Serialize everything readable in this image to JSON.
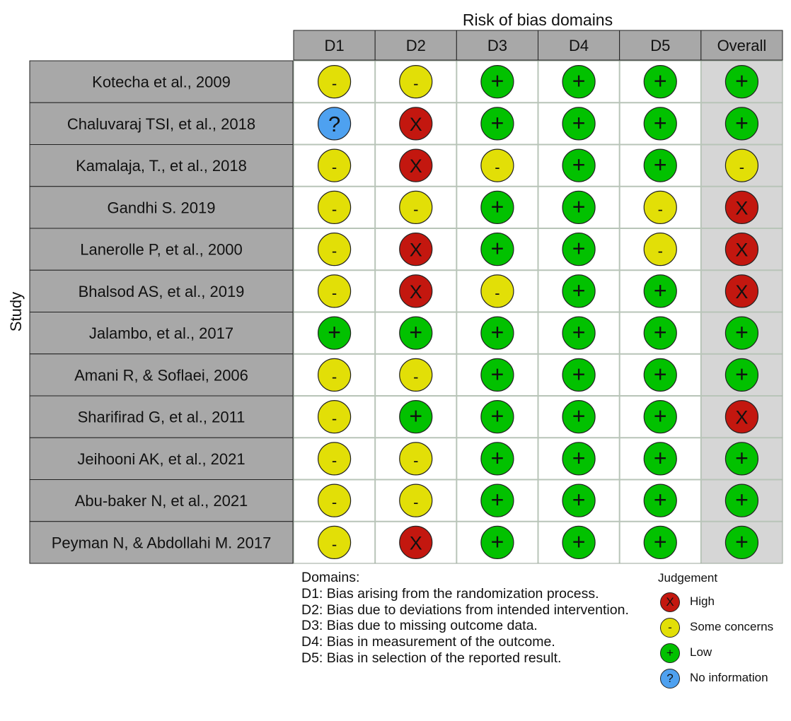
{
  "chart_data": {
    "type": "table",
    "title": "Risk of bias domains",
    "ylabel": "Study",
    "columns": [
      "D1",
      "D2",
      "D3",
      "D4",
      "D5",
      "Overall"
    ],
    "rows": [
      {
        "study": "Kotecha et al., 2009",
        "judgements": [
          "some",
          "some",
          "low",
          "low",
          "low",
          "low"
        ]
      },
      {
        "study": "Chaluvaraj TSI, et al., 2018",
        "judgements": [
          "noinfo",
          "high",
          "low",
          "low",
          "low",
          "low"
        ]
      },
      {
        "study": "Kamalaja, T., et al., 2018",
        "judgements": [
          "some",
          "high",
          "some",
          "low",
          "low",
          "some"
        ]
      },
      {
        "study": "Gandhi S. 2019",
        "judgements": [
          "some",
          "some",
          "low",
          "low",
          "some",
          "high"
        ]
      },
      {
        "study": "Lanerolle P, et al., 2000",
        "judgements": [
          "some",
          "high",
          "low",
          "low",
          "some",
          "high"
        ]
      },
      {
        "study": "Bhalsod AS, et al., 2019",
        "judgements": [
          "some",
          "high",
          "some",
          "low",
          "low",
          "high"
        ]
      },
      {
        "study": "Jalambo, et al., 2017",
        "judgements": [
          "low",
          "low",
          "low",
          "low",
          "low",
          "low"
        ]
      },
      {
        "study": "Amani R, & Soflaei, 2006",
        "judgements": [
          "some",
          "some",
          "low",
          "low",
          "low",
          "low"
        ]
      },
      {
        "study": "Sharifirad G, et al., 2011",
        "judgements": [
          "some",
          "low",
          "low",
          "low",
          "low",
          "high"
        ]
      },
      {
        "study": "Jeihooni AK, et al., 2021",
        "judgements": [
          "some",
          "some",
          "low",
          "low",
          "low",
          "low"
        ]
      },
      {
        "study": "Abu-baker N, et al., 2021",
        "judgements": [
          "some",
          "some",
          "low",
          "low",
          "low",
          "low"
        ]
      },
      {
        "study": "Peyman N, & Abdollahi M. 2017",
        "judgements": [
          "some",
          "high",
          "low",
          "low",
          "low",
          "low"
        ]
      }
    ],
    "judgement_levels": {
      "high": {
        "label": "High",
        "symbol": "X",
        "color": "#c3170f"
      },
      "some": {
        "label": "Some concerns",
        "symbol": "-",
        "color": "#e2df07"
      },
      "low": {
        "label": "Low",
        "symbol": "+",
        "color": "#02c100"
      },
      "noinfo": {
        "label": "No information",
        "symbol": "?",
        "color": "#4ea1f0"
      }
    },
    "legend": {
      "title": "Judgement",
      "order": [
        "high",
        "some",
        "low",
        "noinfo"
      ],
      "placement": "bottom-right"
    },
    "domains_title": "Domains:",
    "domains": [
      "D1: Bias arising from the randomization process.",
      "D2: Bias due to deviations from intended intervention.",
      "D3: Bias due to missing outcome data.",
      "D4: Bias in measurement of the outcome.",
      "D5: Bias in selection of the reported result."
    ]
  }
}
